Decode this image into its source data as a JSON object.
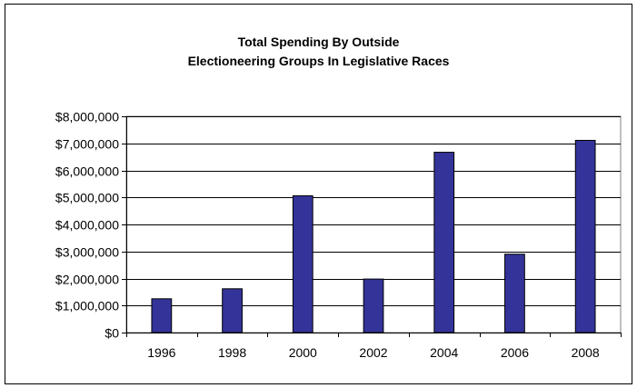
{
  "chart_data": {
    "type": "bar",
    "title": [
      "Total Spending By Outside",
      "Electioneering Groups In Legislative Races"
    ],
    "xlabel": "",
    "ylabel": "",
    "categories": [
      "1996",
      "1998",
      "2000",
      "2002",
      "2004",
      "2006",
      "2008"
    ],
    "values": [
      1250000,
      1620000,
      5060000,
      1980000,
      6670000,
      2900000,
      7110000
    ],
    "ylim": [
      0,
      8000000
    ],
    "y_ticks": [
      0,
      1000000,
      2000000,
      3000000,
      4000000,
      5000000,
      6000000,
      7000000,
      8000000
    ],
    "y_tick_labels": [
      "$0",
      "$1,000,000",
      "$2,000,000",
      "$3,000,000",
      "$4,000,000",
      "$5,000,000",
      "$6,000,000",
      "$7,000,000",
      "$8,000,000"
    ],
    "grid": "horizontal",
    "legend": "none",
    "bar_color": "#333399",
    "bar_outline_color": "#000000"
  }
}
